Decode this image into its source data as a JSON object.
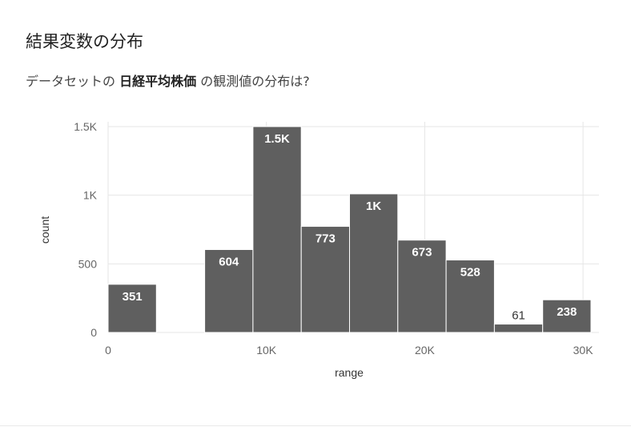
{
  "section_title": "結果変数の分布",
  "question": {
    "prefix": "データセットの ",
    "dataset": "日経平均株価",
    "suffix": " の観測値の分布は?"
  },
  "colors": {
    "bar": "#5f5f5f",
    "grid": "#e6e6e6",
    "label": "#ffffff",
    "outside_label": "#333333"
  },
  "chart_data": {
    "type": "bar",
    "xlabel": "range",
    "ylabel": "count",
    "xlim": [
      0,
      30500
    ],
    "ylim": [
      0,
      1500
    ],
    "xticks": [
      {
        "value": 0,
        "label": "0"
      },
      {
        "value": 10000,
        "label": "10K"
      },
      {
        "value": 20000,
        "label": "20K"
      },
      {
        "value": 30000,
        "label": "30K"
      }
    ],
    "yticks": [
      {
        "value": 0,
        "label": "0"
      },
      {
        "value": 500,
        "label": "500"
      },
      {
        "value": 1000,
        "label": "1K"
      },
      {
        "value": 1500,
        "label": "1.5K"
      }
    ],
    "bins": [
      {
        "x0": 0,
        "x1": 3050,
        "value": 351,
        "label": "351"
      },
      {
        "x0": 3050,
        "x1": 6100,
        "value": 0,
        "label": ""
      },
      {
        "x0": 6100,
        "x1": 9150,
        "value": 604,
        "label": "604"
      },
      {
        "x0": 9150,
        "x1": 12200,
        "value": 1500,
        "label": "1.5K"
      },
      {
        "x0": 12200,
        "x1": 15250,
        "value": 773,
        "label": "773"
      },
      {
        "x0": 15250,
        "x1": 18300,
        "value": 1010,
        "label": "1K"
      },
      {
        "x0": 18300,
        "x1": 21350,
        "value": 673,
        "label": "673"
      },
      {
        "x0": 21350,
        "x1": 24400,
        "value": 528,
        "label": "528"
      },
      {
        "x0": 24400,
        "x1": 27450,
        "value": 61,
        "label": "61"
      },
      {
        "x0": 27450,
        "x1": 30500,
        "value": 238,
        "label": "238"
      }
    ]
  }
}
